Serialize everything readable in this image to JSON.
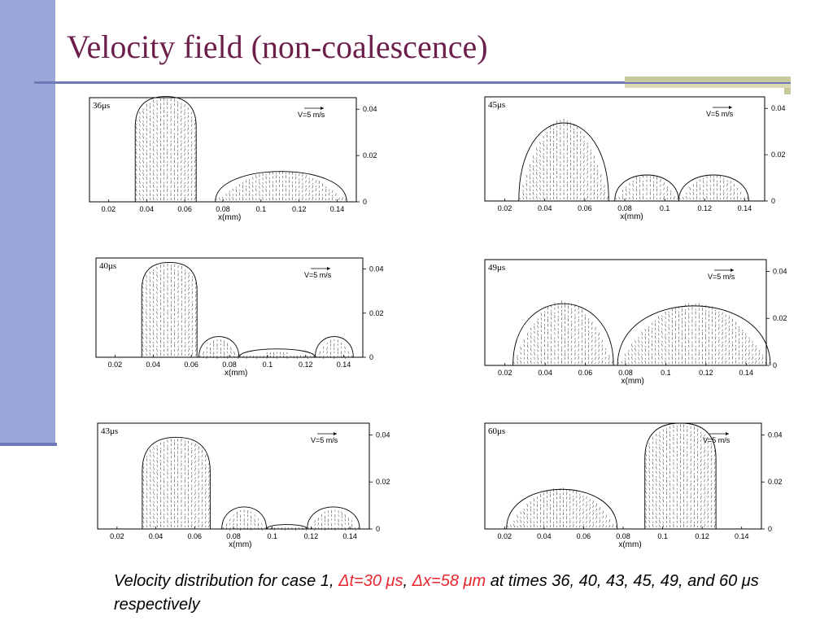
{
  "slide": {
    "title": "Velocity field (non-coalescence)",
    "caption_parts": [
      "Velocity distribution for case 1, ",
      "Δt=30 μs",
      ", ",
      "Δx=58 μm",
      " at times 36, 40, 43, 45, 49, and 60 μs respectively"
    ],
    "colors": {
      "title": "#6b1f4a",
      "accent_bar": "#9aa5d8",
      "rule": "#6f79b8",
      "olive": "#c8c89a",
      "highlight": "#e8262f"
    }
  },
  "chart_data": [
    {
      "type": "scatter",
      "time_label": "36μs",
      "reference_vector": "V=5 m/s",
      "xlabel": "x(mm)",
      "xticks": [
        "0.02",
        "0.04",
        "0.06",
        "0.08",
        "0.1",
        "0.12",
        "0.14"
      ],
      "yticks": [
        "0",
        "0.02",
        "0.04"
      ],
      "xlim": [
        0.01,
        0.15
      ],
      "ylim": [
        0,
        0.045
      ],
      "droplets": [
        {
          "left": 0.034,
          "right": 0.066,
          "height": 0.0455,
          "shape": "column"
        },
        {
          "left": 0.076,
          "right": 0.145,
          "height": 0.014,
          "shape": "dome"
        }
      ]
    },
    {
      "type": "scatter",
      "time_label": "40μs",
      "reference_vector": "V=5 m/s",
      "xlabel": "x(mm)",
      "xticks": [
        "0.02",
        "0.04",
        "0.06",
        "0.08",
        "0.1",
        "0.12",
        "0.14"
      ],
      "yticks": [
        "0",
        "0.02",
        "0.04"
      ],
      "xlim": [
        0.01,
        0.15
      ],
      "ylim": [
        0,
        0.045
      ],
      "droplets": [
        {
          "left": 0.034,
          "right": 0.063,
          "height": 0.043,
          "shape": "column"
        },
        {
          "left": 0.064,
          "right": 0.085,
          "height": 0.01,
          "shape": "dome"
        },
        {
          "left": 0.085,
          "right": 0.125,
          "height": 0.004,
          "shape": "dome"
        },
        {
          "left": 0.125,
          "right": 0.145,
          "height": 0.01,
          "shape": "dome"
        }
      ]
    },
    {
      "type": "scatter",
      "time_label": "43μs",
      "reference_vector": "V=5 m/s",
      "xlabel": "x(mm)",
      "xticks": [
        "0.02",
        "0.04",
        "0.06",
        "0.08",
        "0.1",
        "0.12",
        "0.14"
      ],
      "yticks": [
        "0",
        "0.02",
        "0.04"
      ],
      "xlim": [
        0.01,
        0.15
      ],
      "ylim": [
        0,
        0.045
      ],
      "droplets": [
        {
          "left": 0.033,
          "right": 0.068,
          "height": 0.039,
          "shape": "column"
        },
        {
          "left": 0.074,
          "right": 0.097,
          "height": 0.01,
          "shape": "dome"
        },
        {
          "left": 0.097,
          "right": 0.118,
          "height": 0.002,
          "shape": "dome"
        },
        {
          "left": 0.118,
          "right": 0.145,
          "height": 0.01,
          "shape": "dome"
        }
      ]
    },
    {
      "type": "scatter",
      "time_label": "45μs",
      "reference_vector": "V=5 m/s",
      "xlabel": "x(mm)",
      "xticks": [
        "0.02",
        "0.04",
        "0.06",
        "0.08",
        "0.1",
        "0.12",
        "0.14"
      ],
      "yticks": [
        "0",
        "0.02",
        "0.04"
      ],
      "xlim": [
        0.01,
        0.15
      ],
      "ylim": [
        0,
        0.045
      ],
      "droplets": [
        {
          "left": 0.027,
          "right": 0.072,
          "height": 0.036,
          "shape": "dome"
        },
        {
          "left": 0.075,
          "right": 0.107,
          "height": 0.012,
          "shape": "dome"
        },
        {
          "left": 0.107,
          "right": 0.142,
          "height": 0.012,
          "shape": "dome"
        }
      ]
    },
    {
      "type": "scatter",
      "time_label": "49μs",
      "reference_vector": "V=5 m/s",
      "xlabel": "x(mm)",
      "xticks": [
        "0.02",
        "0.04",
        "0.06",
        "0.08",
        "0.1",
        "0.12",
        "0.14"
      ],
      "yticks": [
        "0",
        "0.02",
        "0.04"
      ],
      "xlim": [
        0.01,
        0.15
      ],
      "ylim": [
        0,
        0.045
      ],
      "droplets": [
        {
          "left": 0.024,
          "right": 0.074,
          "height": 0.028,
          "shape": "dome"
        },
        {
          "left": 0.076,
          "right": 0.152,
          "height": 0.027,
          "shape": "dome"
        }
      ]
    },
    {
      "type": "scatter",
      "time_label": "60μs",
      "reference_vector": "V=5 m/s",
      "xlabel": "x(mm)",
      "xticks": [
        "0.02",
        "0.04",
        "0.06",
        "0.08",
        "0.1",
        "0.12",
        "0.14"
      ],
      "yticks": [
        "0",
        "0.02",
        "0.04"
      ],
      "xlim": [
        0.01,
        0.15
      ],
      "ylim": [
        0,
        0.045
      ],
      "droplets": [
        {
          "left": 0.021,
          "right": 0.077,
          "height": 0.018,
          "shape": "dome"
        },
        {
          "left": 0.091,
          "right": 0.127,
          "height": 0.045,
          "shape": "column"
        }
      ]
    }
  ]
}
